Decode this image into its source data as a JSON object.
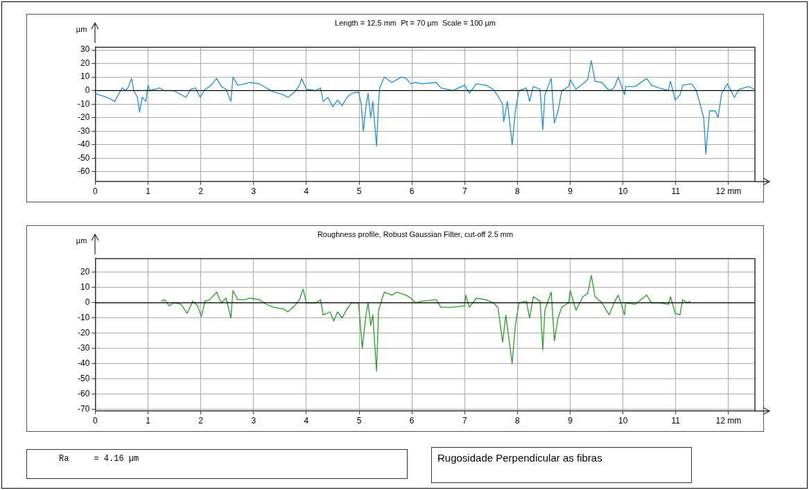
{
  "chart_data": [
    {
      "type": "line",
      "title": "Length = 12.5 mm  Pt = 70 µm  Scale = 100 µm",
      "ylabel": "µm",
      "xlim": [
        0,
        12.5
      ],
      "ylim": [
        -67,
        32
      ],
      "xticks": [
        0,
        1,
        2,
        3,
        4,
        5,
        6,
        7,
        8,
        9,
        10,
        11,
        {
          "value": 12,
          "label": "12 mm"
        }
      ],
      "yticks": [
        -60,
        -50,
        -40,
        -30,
        -20,
        -10,
        0,
        10,
        20,
        30
      ],
      "grid": true,
      "marker": "none",
      "line_style": "solid",
      "ref_lines": [
        {
          "axis": "y",
          "value": 0,
          "color": "#000000"
        }
      ],
      "series": [
        {
          "color": "#1e8fe0",
          "x": [
            0,
            0.06,
            0.15,
            0.28,
            0.37,
            0.44,
            0.51,
            0.57,
            0.62,
            0.69,
            0.73,
            0.8,
            0.84,
            0.89,
            0.96,
            1,
            1.04,
            1.22,
            1.31,
            1.49,
            1.72,
            1.81,
            1.9,
            1.99,
            2.08,
            2.17,
            2.3,
            2.39,
            2.48,
            2.57,
            2.61,
            2.7,
            2.84,
            2.93,
            3.11,
            3.24,
            3.38,
            3.56,
            3.65,
            3.78,
            3.87,
            3.91,
            4,
            4.18,
            4.27,
            4.32,
            4.41,
            4.5,
            4.59,
            4.68,
            4.77,
            4.86,
            4.99,
            5.04,
            5.08,
            5.13,
            5.17,
            5.22,
            5.26,
            5.33,
            5.37,
            5.39,
            5.48,
            5.62,
            5.71,
            5.8,
            5.89,
            5.98,
            6.07,
            6.19,
            6.46,
            6.55,
            6.78,
            7,
            7.09,
            7.22,
            7.4,
            7.54,
            7.63,
            7.72,
            7.74,
            7.81,
            7.9,
            7.96,
            8.03,
            8.17,
            8.23,
            8.3,
            8.43,
            8.48,
            8.52,
            8.64,
            8.7,
            8.77,
            8.84,
            8.97,
            9,
            9.11,
            9.24,
            9.33,
            9.4,
            9.47,
            9.6,
            9.74,
            9.83,
            9.91,
            10.03,
            10.05,
            10.23,
            10.45,
            10.54,
            10.68,
            10.86,
            10.9,
            10.99,
            11.08,
            11.13,
            11.3,
            11.39,
            11.53,
            11.57,
            11.64,
            11.75,
            11.8,
            11.87,
            11.98,
            12.11,
            12.2,
            12.38,
            12.49
          ],
          "values": [
            -2,
            -3,
            -4,
            -6,
            -8,
            -3,
            2,
            0,
            2,
            9,
            0,
            -5,
            -16,
            -5,
            -8,
            4,
            0,
            2,
            0,
            0,
            -5,
            1,
            2,
            -5,
            1,
            3,
            9,
            3,
            1,
            -8,
            10,
            4,
            5,
            6,
            5,
            2,
            -1,
            -3,
            -5,
            -1,
            4,
            9,
            1,
            0,
            2,
            -8,
            -5,
            -12,
            -7,
            -11,
            -5,
            -2,
            -1,
            -10,
            -30,
            -12,
            -2,
            -20,
            -8,
            -41,
            -8,
            2,
            10,
            6,
            8,
            10,
            9,
            5,
            6,
            5,
            6,
            2,
            0,
            4,
            -2,
            5,
            4,
            1,
            -4,
            -10,
            -23,
            -8,
            -40,
            -15,
            0,
            2,
            -8,
            3,
            1,
            -29,
            -3,
            9,
            -24,
            -15,
            0,
            3,
            8,
            1,
            5,
            8,
            22,
            7,
            6,
            0,
            2,
            10,
            -3,
            3,
            3,
            9,
            4,
            2,
            0,
            7,
            -7,
            -3,
            4,
            5,
            0,
            -20,
            -47,
            -15,
            -15,
            -20,
            -2,
            5,
            -5,
            1,
            3,
            1
          ]
        }
      ]
    },
    {
      "type": "line",
      "title": "Roughness profile, Robust Gaussian Filter, cut-off 2.5 mm",
      "ylabel": "µm",
      "xlim": [
        0,
        12.5
      ],
      "ylim": [
        -71,
        29
      ],
      "xticks": [
        0,
        1,
        2,
        3,
        4,
        5,
        6,
        7,
        8,
        9,
        10,
        11,
        {
          "value": 12,
          "label": "12 mm"
        }
      ],
      "yticks": [
        -70,
        -60,
        -50,
        -40,
        -30,
        -20,
        -10,
        0,
        10,
        20
      ],
      "grid": true,
      "marker": "none",
      "line_style": "solid",
      "ref_lines": [
        {
          "axis": "y",
          "value": 0,
          "color": "#000000"
        }
      ],
      "series": [
        {
          "color": "#24a024",
          "x": [
            1.25,
            1.31,
            1.4,
            1.49,
            1.63,
            1.74,
            1.85,
            1.94,
            2.01,
            2.08,
            2.17,
            2.3,
            2.39,
            2.48,
            2.57,
            2.61,
            2.7,
            2.84,
            2.93,
            3.11,
            3.24,
            3.38,
            3.56,
            3.65,
            3.78,
            3.87,
            3.94,
            4,
            4.18,
            4.27,
            4.32,
            4.45,
            4.52,
            4.59,
            4.68,
            4.77,
            4.86,
            4.99,
            5.06,
            5.13,
            5.17,
            5.22,
            5.26,
            5.33,
            5.37,
            5.44,
            5.48,
            5.62,
            5.71,
            5.89,
            5.98,
            6.07,
            6.19,
            6.46,
            6.55,
            6.78,
            7,
            7.02,
            7.09,
            7.22,
            7.4,
            7.54,
            7.63,
            7.72,
            7.78,
            7.9,
            7.96,
            8.03,
            8.17,
            8.23,
            8.3,
            8.43,
            8.48,
            8.52,
            8.64,
            8.7,
            8.77,
            8.84,
            8.97,
            9,
            9.11,
            9.24,
            9.33,
            9.4,
            9.47,
            9.6,
            9.74,
            9.83,
            9.91,
            10.03,
            10.05,
            10.23,
            10.45,
            10.54,
            10.68,
            10.86,
            10.9,
            10.99,
            11.08,
            11.13,
            11.22,
            11.28
          ],
          "values": [
            1,
            2,
            -2,
            0,
            -1,
            -7,
            1,
            -2,
            -9,
            1,
            2,
            7,
            0,
            3,
            -10,
            8,
            2,
            2,
            3,
            2,
            -1,
            -3,
            -4,
            -6,
            -2,
            2,
            9,
            0,
            0,
            2,
            -8,
            -6,
            -12,
            -6,
            -10,
            -4,
            0,
            0,
            -30,
            -8,
            0,
            -15,
            -8,
            -45,
            -5,
            3,
            7,
            5,
            7,
            5,
            3,
            0,
            1,
            2,
            -3,
            -3,
            -2,
            5,
            -3,
            3,
            2,
            0,
            -3,
            -26,
            -8,
            -40,
            -15,
            0,
            1,
            -10,
            4,
            1,
            -31,
            -5,
            7,
            -25,
            -10,
            -3,
            0,
            8,
            -5,
            4,
            6,
            18,
            4,
            0,
            -8,
            0,
            5,
            -8,
            0,
            -1,
            5,
            0,
            0,
            -1,
            4,
            -7,
            -8,
            2,
            0,
            1
          ]
        }
      ]
    },
    {
      "type": "other",
      "annotations": [
        "Ra     = 4.16 µm",
        "Rugosidade Perpendicular as fibras"
      ]
    }
  ]
}
